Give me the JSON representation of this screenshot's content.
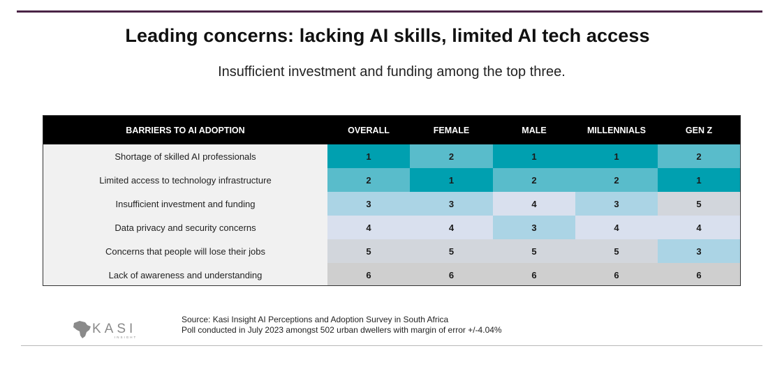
{
  "title": "Leading concerns: lacking AI skills, limited AI tech access",
  "subtitle": "Insufficient investment and funding among the top three.",
  "logo": {
    "text": "KASI",
    "sub": "INSIGHT"
  },
  "source": {
    "line1": "Source: Kasi Insight AI Perceptions and Adoption Survey in South Africa",
    "line2": "Poll conducted in July 2023 amongst 502 urban dwellers with margin of error +/-4.04%"
  },
  "rank_colors": {
    "1": "#00a0b0",
    "2": "#59bccb",
    "3": "#abd4e5",
    "4": "#d9e0ee",
    "5": "#d2d6dc",
    "6": "#cfcfcf"
  },
  "chart_data": {
    "type": "table",
    "title": "Leading concerns: lacking AI skills, limited AI tech access",
    "subtitle": "Insufficient investment and funding among the top three.",
    "headers": [
      "BARRIERS TO AI ADOPTION",
      "OVERALL",
      "FEMALE",
      "MALE",
      "MILLENNIALS",
      "GEN Z"
    ],
    "rows": [
      {
        "label": "Shortage of skilled AI professionals",
        "values": [
          1,
          2,
          1,
          1,
          2
        ]
      },
      {
        "label": "Limited access to technology infrastructure",
        "values": [
          2,
          1,
          2,
          2,
          1
        ]
      },
      {
        "label": "Insufficient investment and funding",
        "values": [
          3,
          3,
          4,
          3,
          5
        ]
      },
      {
        "label": "Data privacy and security concerns",
        "values": [
          4,
          4,
          3,
          4,
          4
        ]
      },
      {
        "label": "Concerns that people will lose their jobs",
        "values": [
          5,
          5,
          5,
          5,
          3
        ]
      },
      {
        "label": "Lack of awareness and understanding",
        "values": [
          6,
          6,
          6,
          6,
          6
        ]
      }
    ]
  }
}
